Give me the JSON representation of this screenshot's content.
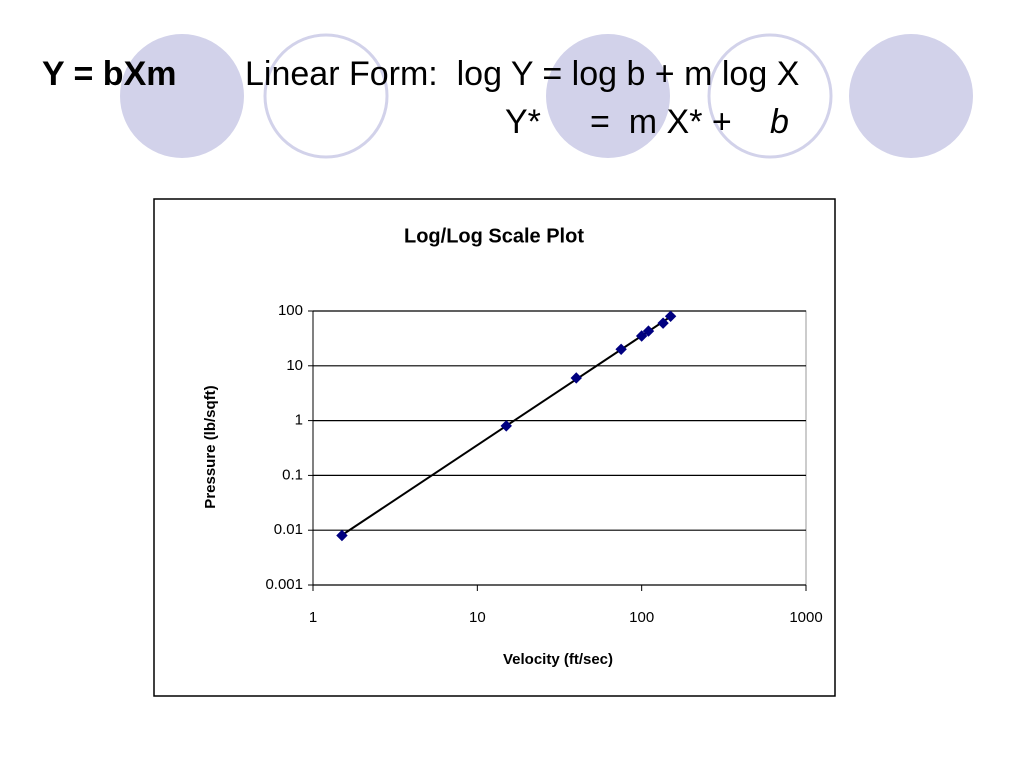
{
  "header": {
    "equation": "Y = bXm",
    "linear_form": "Linear Form:  log Y = log b + m log X",
    "line2_lhs": "Y*",
    "line2_rhs": "=  m X* +",
    "line2_b": "b"
  },
  "chart_data": {
    "type": "scatter",
    "title": "Log/Log Scale Plot",
    "x_label": "Velocity (ft/sec)",
    "y_label": "Pressure (lb/sqft)",
    "x": [
      1.5,
      15,
      40,
      75,
      100,
      110,
      135,
      150
    ],
    "values": [
      0.008,
      0.8,
      6,
      20,
      35,
      43,
      60,
      80
    ],
    "color": "#000080",
    "trendline": true,
    "xscale": "log",
    "yscale": "log",
    "xlim": [
      1,
      1000
    ],
    "xticks": [
      1,
      10,
      100,
      1000
    ],
    "ylim": [
      0.001,
      100
    ],
    "yticks": [
      0.001,
      0.01,
      0.1,
      1,
      10,
      100
    ],
    "grid": true
  }
}
